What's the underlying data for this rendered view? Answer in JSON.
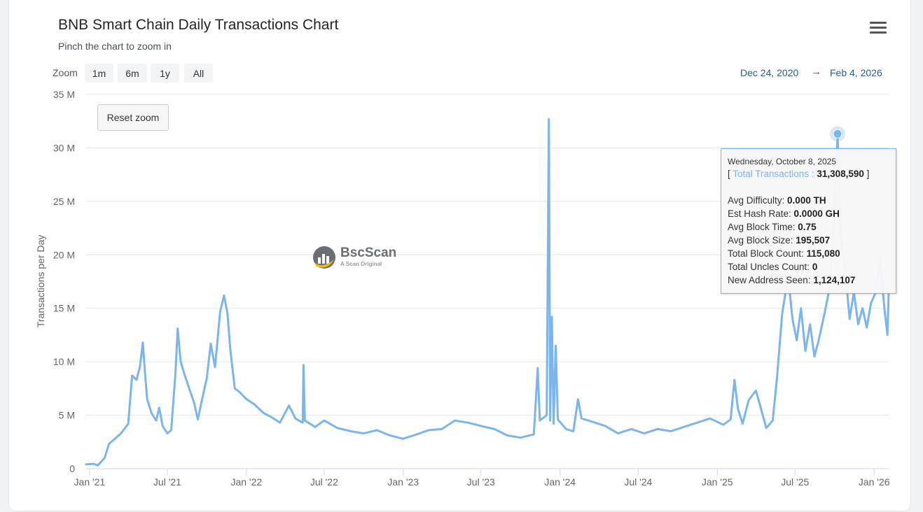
{
  "header": {
    "title": "BNB Smart Chain Daily Transactions Chart",
    "subtitle": "Pinch the chart to zoom in"
  },
  "zoom": {
    "label": "Zoom",
    "buttons": [
      "1m",
      "6m",
      "1y",
      "All"
    ],
    "range_from": "Dec 24, 2020",
    "range_arrow": "→",
    "range_to": "Feb 4, 2026",
    "reset_label": "Reset zoom"
  },
  "watermark": {
    "name": "BscScan",
    "tagline": "A Scan Original"
  },
  "tooltip": {
    "date": "Wednesday, October 8, 2025",
    "series_open": "[ ",
    "series_label": "Total Transactions",
    "series_sep": " : ",
    "series_value": "31,308,590",
    "series_close": " ]",
    "rows": [
      {
        "label": "Avg Difficulty: ",
        "value": "0.000 TH"
      },
      {
        "label": "Est Hash Rate: ",
        "value": "0.0000 GH"
      },
      {
        "label": "Avg Block Time: ",
        "value": "0.75"
      },
      {
        "label": "Avg Block Size: ",
        "value": "195,507"
      },
      {
        "label": "Total Block Count: ",
        "value": "115,080"
      },
      {
        "label": "Total Uncles Count: ",
        "value": "0"
      },
      {
        "label": "New Address Seen: ",
        "value": "1,124,107"
      }
    ]
  },
  "colors": {
    "series": "#7cb5ec",
    "grid": "#e6e6e6",
    "axis_text": "#666666",
    "range_text": "#2b5c94"
  },
  "chart_data": {
    "type": "line",
    "title": "BNB Smart Chain Daily Transactions Chart",
    "subtitle": "Pinch the chart to zoom in",
    "ylabel": "Transactions per Day",
    "ylim": [
      0,
      35000000
    ],
    "y_ticks": [
      0,
      5000000,
      10000000,
      15000000,
      20000000,
      25000000,
      30000000,
      35000000
    ],
    "y_tick_labels": [
      "0",
      "5 M",
      "10 M",
      "15 M",
      "20 M",
      "25 M",
      "30 M",
      "35 M"
    ],
    "x_range": [
      "2020-12-24",
      "2026-02-04"
    ],
    "x_ticks": [
      "2021-01-01",
      "2021-07-01",
      "2022-01-01",
      "2022-07-01",
      "2023-01-01",
      "2023-07-01",
      "2024-01-01",
      "2024-07-01",
      "2025-01-01",
      "2025-07-01",
      "2026-01-01"
    ],
    "x_tick_labels": [
      "Jan '21",
      "Jul '21",
      "Jan '22",
      "Jul '22",
      "Jan '23",
      "Jul '23",
      "Jan '24",
      "Jul '24",
      "Jan '25",
      "Jul '25",
      "Jan '26"
    ],
    "grid": true,
    "legend": "none",
    "highlight": {
      "date": "2025-10-08",
      "value": 31308590
    },
    "series": [
      {
        "name": "Total Transactions",
        "points": [
          [
            "2020-12-24",
            400000
          ],
          [
            "2021-01-10",
            450000
          ],
          [
            "2021-01-20",
            300000
          ],
          [
            "2021-02-05",
            1000000
          ],
          [
            "2021-02-15",
            2300000
          ],
          [
            "2021-03-01",
            2800000
          ],
          [
            "2021-03-15",
            3300000
          ],
          [
            "2021-04-01",
            4200000
          ],
          [
            "2021-04-10",
            8700000
          ],
          [
            "2021-04-20",
            8300000
          ],
          [
            "2021-04-28",
            9500000
          ],
          [
            "2021-05-05",
            11800000
          ],
          [
            "2021-05-10",
            9000000
          ],
          [
            "2021-05-15",
            6500000
          ],
          [
            "2021-05-25",
            5200000
          ],
          [
            "2021-06-05",
            4500000
          ],
          [
            "2021-06-12",
            5700000
          ],
          [
            "2021-06-20",
            4000000
          ],
          [
            "2021-07-01",
            3300000
          ],
          [
            "2021-07-10",
            3600000
          ],
          [
            "2021-07-20",
            9000000
          ],
          [
            "2021-07-25",
            13100000
          ],
          [
            "2021-08-01",
            10000000
          ],
          [
            "2021-08-10",
            8800000
          ],
          [
            "2021-08-20",
            7600000
          ],
          [
            "2021-09-01",
            6200000
          ],
          [
            "2021-09-10",
            4600000
          ],
          [
            "2021-09-20",
            6500000
          ],
          [
            "2021-10-01",
            8500000
          ],
          [
            "2021-10-10",
            11700000
          ],
          [
            "2021-10-20",
            9500000
          ],
          [
            "2021-11-01",
            14700000
          ],
          [
            "2021-11-10",
            16200000
          ],
          [
            "2021-11-18",
            14500000
          ],
          [
            "2021-11-25",
            11000000
          ],
          [
            "2021-12-05",
            7500000
          ],
          [
            "2021-12-15",
            7200000
          ],
          [
            "2022-01-01",
            6500000
          ],
          [
            "2022-01-20",
            6000000
          ],
          [
            "2022-02-10",
            5200000
          ],
          [
            "2022-03-01",
            4800000
          ],
          [
            "2022-03-20",
            4300000
          ],
          [
            "2022-04-10",
            5900000
          ],
          [
            "2022-04-25",
            4700000
          ],
          [
            "2022-05-12",
            4300000
          ],
          [
            "2022-05-14",
            9700000
          ],
          [
            "2022-05-17",
            4500000
          ],
          [
            "2022-06-10",
            3900000
          ],
          [
            "2022-07-01",
            4500000
          ],
          [
            "2022-08-01",
            3800000
          ],
          [
            "2022-09-01",
            3500000
          ],
          [
            "2022-10-01",
            3300000
          ],
          [
            "2022-11-01",
            3600000
          ],
          [
            "2022-12-01",
            3100000
          ],
          [
            "2023-01-01",
            2800000
          ],
          [
            "2023-02-01",
            3200000
          ],
          [
            "2023-03-01",
            3600000
          ],
          [
            "2023-04-01",
            3700000
          ],
          [
            "2023-05-01",
            4500000
          ],
          [
            "2023-06-01",
            4300000
          ],
          [
            "2023-07-01",
            4000000
          ],
          [
            "2023-08-01",
            3700000
          ],
          [
            "2023-09-01",
            3100000
          ],
          [
            "2023-10-01",
            2900000
          ],
          [
            "2023-11-01",
            3200000
          ],
          [
            "2023-11-10",
            9400000
          ],
          [
            "2023-11-15",
            4500000
          ],
          [
            "2023-12-01",
            5000000
          ],
          [
            "2023-12-06",
            32700000
          ],
          [
            "2023-12-09",
            4500000
          ],
          [
            "2023-12-13",
            14200000
          ],
          [
            "2023-12-17",
            4200000
          ],
          [
            "2023-12-22",
            11500000
          ],
          [
            "2023-12-27",
            4600000
          ],
          [
            "2024-01-15",
            3700000
          ],
          [
            "2024-02-01",
            3500000
          ],
          [
            "2024-02-12",
            6500000
          ],
          [
            "2024-02-20",
            4700000
          ],
          [
            "2024-03-15",
            4400000
          ],
          [
            "2024-04-15",
            4000000
          ],
          [
            "2024-05-15",
            3300000
          ],
          [
            "2024-06-15",
            3700000
          ],
          [
            "2024-07-15",
            3300000
          ],
          [
            "2024-08-15",
            3700000
          ],
          [
            "2024-09-15",
            3500000
          ],
          [
            "2024-10-15",
            3900000
          ],
          [
            "2024-11-15",
            4300000
          ],
          [
            "2024-12-15",
            4700000
          ],
          [
            "2025-01-15",
            4100000
          ],
          [
            "2025-02-01",
            4600000
          ],
          [
            "2025-02-10",
            8300000
          ],
          [
            "2025-02-18",
            5600000
          ],
          [
            "2025-03-01",
            4200000
          ],
          [
            "2025-03-15",
            6400000
          ],
          [
            "2025-04-01",
            7300000
          ],
          [
            "2025-04-10",
            6000000
          ],
          [
            "2025-04-25",
            3800000
          ],
          [
            "2025-05-10",
            4500000
          ],
          [
            "2025-05-20",
            8500000
          ],
          [
            "2025-06-01",
            14500000
          ],
          [
            "2025-06-15",
            18000000
          ],
          [
            "2025-06-25",
            14000000
          ],
          [
            "2025-07-05",
            12000000
          ],
          [
            "2025-07-15",
            15000000
          ],
          [
            "2025-07-25",
            11000000
          ],
          [
            "2025-08-05",
            13500000
          ],
          [
            "2025-08-15",
            10500000
          ],
          [
            "2025-08-25",
            12000000
          ],
          [
            "2025-09-05",
            14000000
          ],
          [
            "2025-09-20",
            17000000
          ],
          [
            "2025-10-01",
            24000000
          ],
          [
            "2025-10-08",
            31308590
          ],
          [
            "2025-10-15",
            22000000
          ],
          [
            "2025-10-25",
            19000000
          ],
          [
            "2025-11-05",
            14000000
          ],
          [
            "2025-11-15",
            16500000
          ],
          [
            "2025-11-25",
            13500000
          ],
          [
            "2025-12-05",
            15000000
          ],
          [
            "2025-12-15",
            13200000
          ],
          [
            "2025-12-25",
            15500000
          ],
          [
            "2026-01-05",
            16500000
          ],
          [
            "2026-01-15",
            19500000
          ],
          [
            "2026-01-25",
            15000000
          ],
          [
            "2026-02-01",
            12500000
          ],
          [
            "2026-02-04",
            16500000
          ]
        ]
      }
    ]
  }
}
